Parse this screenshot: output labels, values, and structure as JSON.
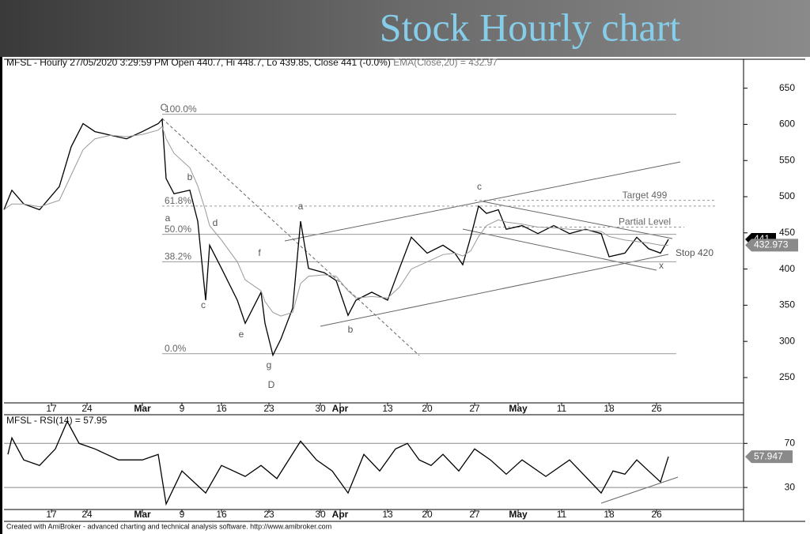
{
  "title": "Stock Hourly chart",
  "footer": "Created with AmiBroker - advanced charting and technical analysis software. http://www.amibroker.com",
  "chart_data": [
    {
      "type": "line",
      "header": "MFSL - Hourly 27/05/2020 3:29:59 PM Open 440.7, Hi 448.7, Lo 439.85, Close 441 (-0.0%)",
      "ema_header": "EMA(Close,20) = 432.97",
      "x": [
        0,
        2,
        5,
        9,
        14,
        17,
        20,
        23,
        27,
        31,
        35,
        39,
        40,
        41,
        43,
        47,
        49,
        51,
        52,
        55,
        59,
        61,
        65,
        66,
        68,
        70,
        73,
        75,
        77,
        81,
        84,
        87,
        89,
        93,
        97,
        100,
        103,
        107,
        111,
        114,
        116,
        118,
        120,
        122,
        125,
        127,
        131,
        135,
        139,
        143,
        147,
        151,
        153,
        157,
        160,
        163,
        166,
        168
      ],
      "xlim": [
        0,
        187
      ],
      "xticks": [
        {
          "value": 12,
          "label": "17"
        },
        {
          "value": 21,
          "label": "24"
        },
        {
          "value": 35,
          "label": "Mar"
        },
        {
          "value": 45,
          "label": "9"
        },
        {
          "value": 55,
          "label": "16"
        },
        {
          "value": 67,
          "label": "23"
        },
        {
          "value": 80,
          "label": "30"
        },
        {
          "value": 85,
          "label": "Apr"
        },
        {
          "value": 97,
          "label": "13"
        },
        {
          "value": 107,
          "label": "20"
        },
        {
          "value": 119,
          "label": "27"
        },
        {
          "value": 130,
          "label": "May"
        },
        {
          "value": 141,
          "label": "11"
        },
        {
          "value": 153,
          "label": "18"
        },
        {
          "value": 165,
          "label": "26"
        }
      ],
      "series": [
        {
          "color": "#000000",
          "values": [
            482,
            509,
            490,
            482,
            514,
            569,
            601,
            590,
            585,
            580,
            590,
            601,
            607,
            525,
            504,
            509,
            466,
            357,
            433,
            401,
            357,
            325,
            368,
            325,
            281,
            303,
            346,
            466,
            401,
            395,
            384,
            336,
            357,
            368,
            357,
            401,
            444,
            422,
            433,
            422,
            406,
            444,
            487,
            477,
            482,
            455,
            460,
            449,
            460,
            449,
            455,
            449,
            417,
            422,
            444,
            428,
            422,
            441
          ]
        },
        {
          "color": "#999999",
          "values": [
            482,
            490,
            490,
            486,
            495,
            530,
            565,
            580,
            585,
            583,
            586,
            592,
            597,
            580,
            560,
            540,
            515,
            480,
            460,
            440,
            410,
            385,
            370,
            355,
            340,
            335,
            340,
            380,
            390,
            392,
            390,
            370,
            360,
            362,
            360,
            375,
            400,
            410,
            420,
            422,
            418,
            425,
            445,
            460,
            468,
            465,
            462,
            458,
            457,
            455,
            454,
            452,
            445,
            440,
            438,
            436,
            433,
            433
          ]
        }
      ],
      "ylim": [
        215,
        690
      ],
      "yticks": [
        250,
        300,
        350,
        400,
        450,
        500,
        550,
        600,
        650
      ],
      "levels": [
        {
          "label": "100.0%",
          "value": 614
        },
        {
          "label": "61.8%",
          "value": 487
        },
        {
          "label": "50.0%",
          "value": 448
        },
        {
          "label": "38.2%",
          "value": 410
        },
        {
          "label": "0.0%",
          "value": 283
        },
        {
          "label": "Target 499",
          "value": 495
        },
        {
          "label": "Partial Level",
          "value": 458
        }
      ],
      "annotations": [
        "C",
        "a",
        "b",
        "d",
        "c",
        "e",
        "f",
        "g",
        "D",
        "a",
        "b",
        "c",
        "x",
        "Stop 420"
      ],
      "last_values": [
        441,
        432.973
      ]
    },
    {
      "type": "line",
      "header": "MFSL - RSI(14) = 57.95",
      "x": [
        1,
        2,
        5,
        9,
        13,
        16,
        19,
        23,
        29,
        35,
        39,
        41,
        45,
        51,
        55,
        61,
        65,
        69,
        75,
        79,
        83,
        87,
        91,
        95,
        99,
        102,
        105,
        108,
        111,
        115,
        119,
        123,
        127,
        131,
        137,
        143,
        151,
        154,
        157,
        160,
        163,
        166,
        168
      ],
      "xlim": [
        0,
        187
      ],
      "xticks": [
        {
          "value": 12,
          "label": "17"
        },
        {
          "value": 21,
          "label": "24"
        },
        {
          "value": 35,
          "label": "Mar"
        },
        {
          "value": 45,
          "label": "9"
        },
        {
          "value": 55,
          "label": "16"
        },
        {
          "value": 67,
          "label": "23"
        },
        {
          "value": 80,
          "label": "30"
        },
        {
          "value": 85,
          "label": "Apr"
        },
        {
          "value": 97,
          "label": "13"
        },
        {
          "value": 107,
          "label": "20"
        },
        {
          "value": 119,
          "label": "27"
        },
        {
          "value": 130,
          "label": "May"
        },
        {
          "value": 141,
          "label": "11"
        },
        {
          "value": 153,
          "label": "18"
        },
        {
          "value": 165,
          "label": "26"
        }
      ],
      "series": [
        {
          "color": "#000000",
          "values": [
            60,
            75,
            55,
            50,
            65,
            90,
            70,
            65,
            55,
            55,
            60,
            15,
            45,
            25,
            50,
            40,
            50,
            38,
            72,
            55,
            45,
            25,
            60,
            45,
            65,
            70,
            55,
            50,
            60,
            45,
            65,
            55,
            42,
            55,
            40,
            55,
            25,
            45,
            42,
            55,
            45,
            35,
            57.95
          ]
        }
      ],
      "ylim": [
        10,
        96
      ],
      "yticks": [
        30,
        70
      ],
      "last_values": [
        57.947
      ]
    }
  ]
}
